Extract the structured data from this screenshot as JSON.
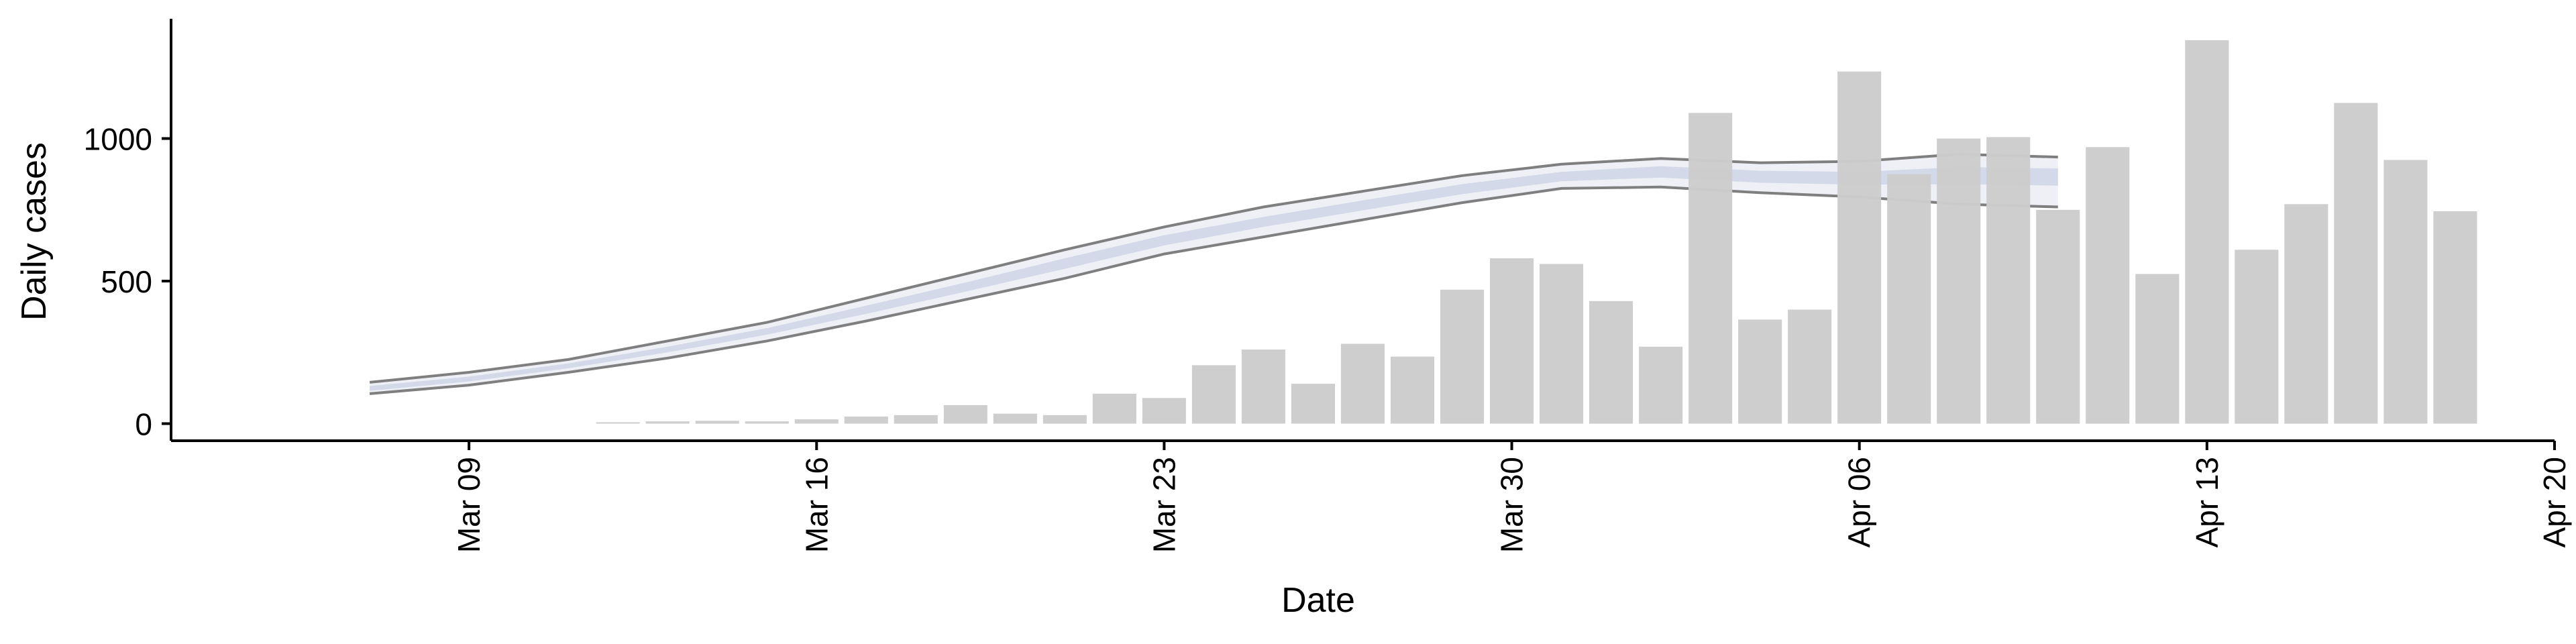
{
  "chart_data": {
    "type": "bar",
    "xlabel": "Date",
    "ylabel": "Daily cases",
    "x_axis": {
      "type": "date",
      "range": [
        "2020-03-03",
        "2020-04-20"
      ],
      "ticks": [
        {
          "date": "2020-03-09",
          "label": "Mar 09"
        },
        {
          "date": "2020-03-16",
          "label": "Mar 16"
        },
        {
          "date": "2020-03-23",
          "label": "Mar 23"
        },
        {
          "date": "2020-03-30",
          "label": "Mar 30"
        },
        {
          "date": "2020-04-06",
          "label": "Apr 06"
        },
        {
          "date": "2020-04-13",
          "label": "Apr 13"
        },
        {
          "date": "2020-04-20",
          "label": "Apr 20"
        }
      ]
    },
    "y_axis": {
      "range": [
        -60,
        1420
      ],
      "ticks": [
        {
          "value": 0,
          "label": "0"
        },
        {
          "value": 500,
          "label": "500"
        },
        {
          "value": 1000,
          "label": "1000"
        }
      ]
    },
    "grid": false,
    "colors": {
      "bars": "#cccccc",
      "band_outer": "#eef0f6",
      "band_inner": "#d3d9e8",
      "band_edge": "#7f7f7f",
      "axis": "#000000"
    },
    "series": [
      {
        "kind": "bar",
        "x": [
          "2020-03-12",
          "2020-03-13",
          "2020-03-14",
          "2020-03-15",
          "2020-03-16",
          "2020-03-17",
          "2020-03-18",
          "2020-03-19",
          "2020-03-20",
          "2020-03-21",
          "2020-03-22",
          "2020-03-23",
          "2020-03-24",
          "2020-03-25",
          "2020-03-26",
          "2020-03-27",
          "2020-03-28",
          "2020-03-29",
          "2020-03-30",
          "2020-03-31",
          "2020-04-01",
          "2020-04-02",
          "2020-04-03",
          "2020-04-04",
          "2020-04-05",
          "2020-04-06",
          "2020-04-07",
          "2020-04-08",
          "2020-04-09",
          "2020-04-10",
          "2020-04-11",
          "2020-04-12",
          "2020-04-13",
          "2020-04-14",
          "2020-04-15",
          "2020-04-16",
          "2020-04-17",
          "2020-04-18"
        ],
        "values": [
          5,
          8,
          10,
          8,
          15,
          25,
          30,
          65,
          35,
          30,
          105,
          90,
          205,
          260,
          140,
          280,
          235,
          470,
          580,
          560,
          430,
          270,
          1090,
          365,
          400,
          1235,
          875,
          1000,
          1005,
          750,
          970,
          525,
          1345,
          610,
          770,
          1125,
          925,
          745
        ]
      },
      {
        "kind": "band",
        "x": [
          "2020-03-07",
          "2020-03-09",
          "2020-03-11",
          "2020-03-13",
          "2020-03-15",
          "2020-03-17",
          "2020-03-19",
          "2020-03-21",
          "2020-03-23",
          "2020-03-25",
          "2020-03-27",
          "2020-03-29",
          "2020-03-31",
          "2020-04-02",
          "2020-04-04",
          "2020-04-06",
          "2020-04-08",
          "2020-04-10"
        ],
        "lower": [
          105,
          135,
          180,
          230,
          290,
          360,
          435,
          510,
          595,
          655,
          715,
          775,
          825,
          830,
          810,
          795,
          770,
          760
        ],
        "upper": [
          145,
          180,
          225,
          290,
          355,
          440,
          525,
          610,
          690,
          760,
          815,
          870,
          910,
          930,
          915,
          920,
          945,
          935
        ],
        "mid_lower": [
          115,
          148,
          194,
          250,
          312,
          385,
          463,
          543,
          625,
          690,
          748,
          805,
          850,
          863,
          845,
          838,
          840,
          835
        ],
        "mid_upper": [
          132,
          165,
          211,
          270,
          335,
          414,
          495,
          580,
          661,
          725,
          783,
          840,
          883,
          903,
          887,
          883,
          900,
          895
        ]
      }
    ]
  }
}
